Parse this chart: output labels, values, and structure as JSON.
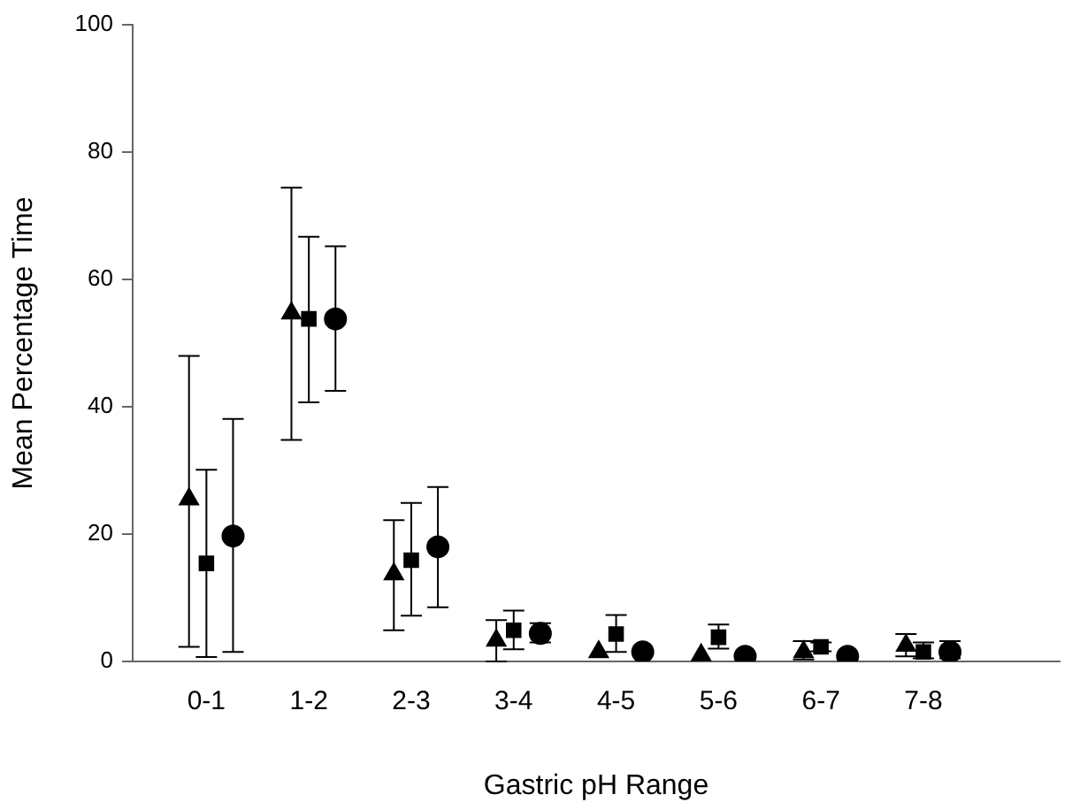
{
  "chart_data": {
    "type": "scatter",
    "xlabel": "Gastric pH Range",
    "ylabel": "Mean Percentage Time",
    "categories": [
      "0-1",
      "1-2",
      "2-3",
      "3-4",
      "4-5",
      "5-6",
      "6-7",
      "7-8"
    ],
    "ylim": [
      0,
      100
    ],
    "yticks": [
      0,
      20,
      40,
      60,
      80,
      100
    ],
    "grid": false,
    "legend": false,
    "series": [
      {
        "color": "#000000",
        "marker": "triangle",
        "values": [
          25.5,
          54.7,
          13.7,
          3.3,
          1.5,
          1.0,
          1.5,
          2.5
        ],
        "errors": [
          [
            2.3,
            48.0
          ],
          [
            34.8,
            74.4
          ],
          [
            4.9,
            22.2
          ],
          [
            0,
            6.5
          ],
          null,
          null,
          [
            0.3,
            3.2
          ],
          [
            0.8,
            4.3
          ]
        ]
      },
      {
        "color": "#000000",
        "marker": "square",
        "values": [
          15.4,
          53.8,
          15.9,
          4.9,
          4.3,
          3.8,
          2.3,
          1.5
        ],
        "errors": [
          [
            0.7,
            30.1
          ],
          [
            40.7,
            66.7
          ],
          [
            7.2,
            24.9
          ],
          [
            1.9,
            8.0
          ],
          [
            1.5,
            7.3
          ],
          [
            2.0,
            5.8
          ],
          [
            1.6,
            3.0
          ],
          [
            0.5,
            3.0
          ]
        ]
      },
      {
        "color": "#000000",
        "marker": "circle",
        "values": [
          19.7,
          53.8,
          18.0,
          4.4,
          1.5,
          0.8,
          0.8,
          1.5
        ],
        "errors": [
          [
            1.5,
            38.1
          ],
          [
            42.5,
            65.2
          ],
          [
            8.5,
            27.4
          ],
          [
            3.0,
            6.0
          ],
          null,
          null,
          null,
          [
            0.5,
            3.2
          ]
        ]
      }
    ]
  }
}
